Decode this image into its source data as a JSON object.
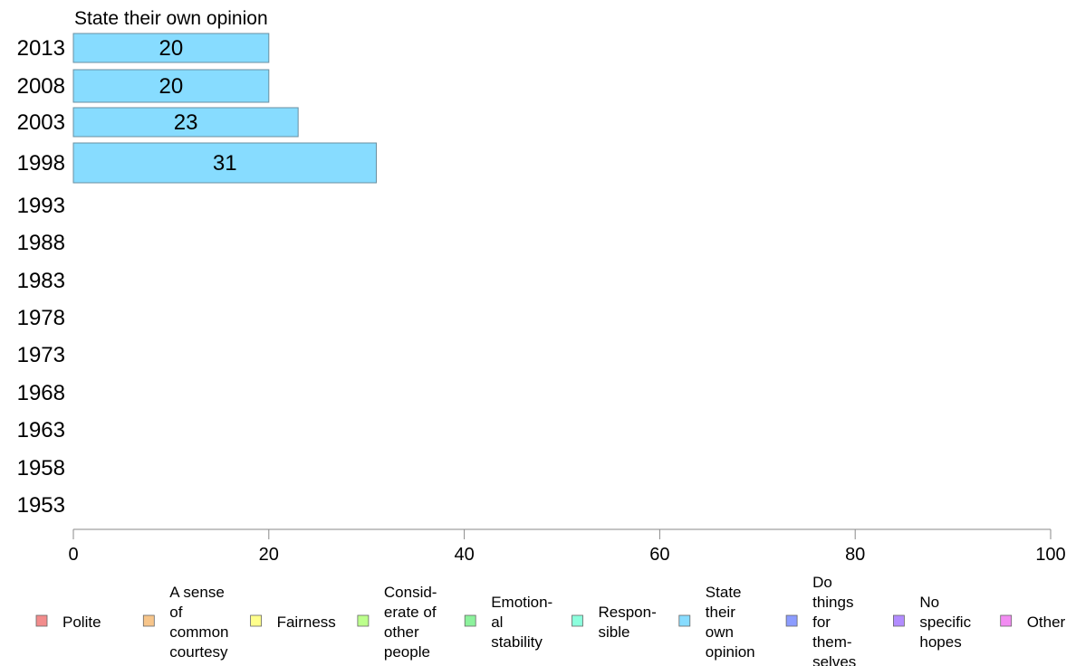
{
  "chart_data": {
    "type": "bar",
    "orientation": "horizontal",
    "title": "State their own opinion",
    "xlabel": "",
    "ylabel": "",
    "xlim": [
      0,
      100
    ],
    "x_ticks": [
      "0",
      "20",
      "40",
      "60",
      "80",
      "100"
    ],
    "categories": [
      "2013",
      "2008",
      "2003",
      "1998",
      "1993",
      "1988",
      "1983",
      "1978",
      "1973",
      "1968",
      "1963",
      "1958",
      "1953"
    ],
    "values": [
      20,
      20,
      23,
      31,
      null,
      null,
      null,
      null,
      null,
      null,
      null,
      null,
      null
    ],
    "value_labels": [
      "20",
      "20",
      "23",
      "31",
      "",
      "",
      "",
      "",
      "",
      "",
      "",
      "",
      ""
    ],
    "bar_color": "#87DCFF",
    "grid": false,
    "legend_position": "bottom",
    "legend": [
      {
        "label": "Polite",
        "color": "#F28C8C"
      },
      {
        "label": "A sense of common courtesy",
        "color": "#F7C58A"
      },
      {
        "label": "Fairness",
        "color": "#FFFF8C"
      },
      {
        "label": "Consid-erate of other people",
        "color": "#BCFF8C"
      },
      {
        "label": "Emotion-al stability",
        "color": "#8CF29C"
      },
      {
        "label": "Respon-sible",
        "color": "#8CFFDD"
      },
      {
        "label": "State their own opinion",
        "color": "#87DCFF"
      },
      {
        "label": "Do things for them-selves",
        "color": "#8C9CFF"
      },
      {
        "label": "No specific hopes",
        "color": "#B28CFF"
      },
      {
        "label": "Other",
        "color": "#F28CF2"
      }
    ],
    "legend_lines": [
      [
        "Polite"
      ],
      [
        "A sense",
        "of",
        "common",
        "courtesy"
      ],
      [
        "Fairness"
      ],
      [
        "Consid-",
        "erate of",
        "other",
        "people"
      ],
      [
        "Emotion-",
        "al",
        "stability"
      ],
      [
        "Respon-",
        "sible"
      ],
      [
        "State",
        "their",
        "own",
        "opinion"
      ],
      [
        "Do",
        "things",
        "for",
        "them-",
        "selves"
      ],
      [
        "No",
        "specific",
        "hopes"
      ],
      [
        "Other"
      ]
    ]
  }
}
